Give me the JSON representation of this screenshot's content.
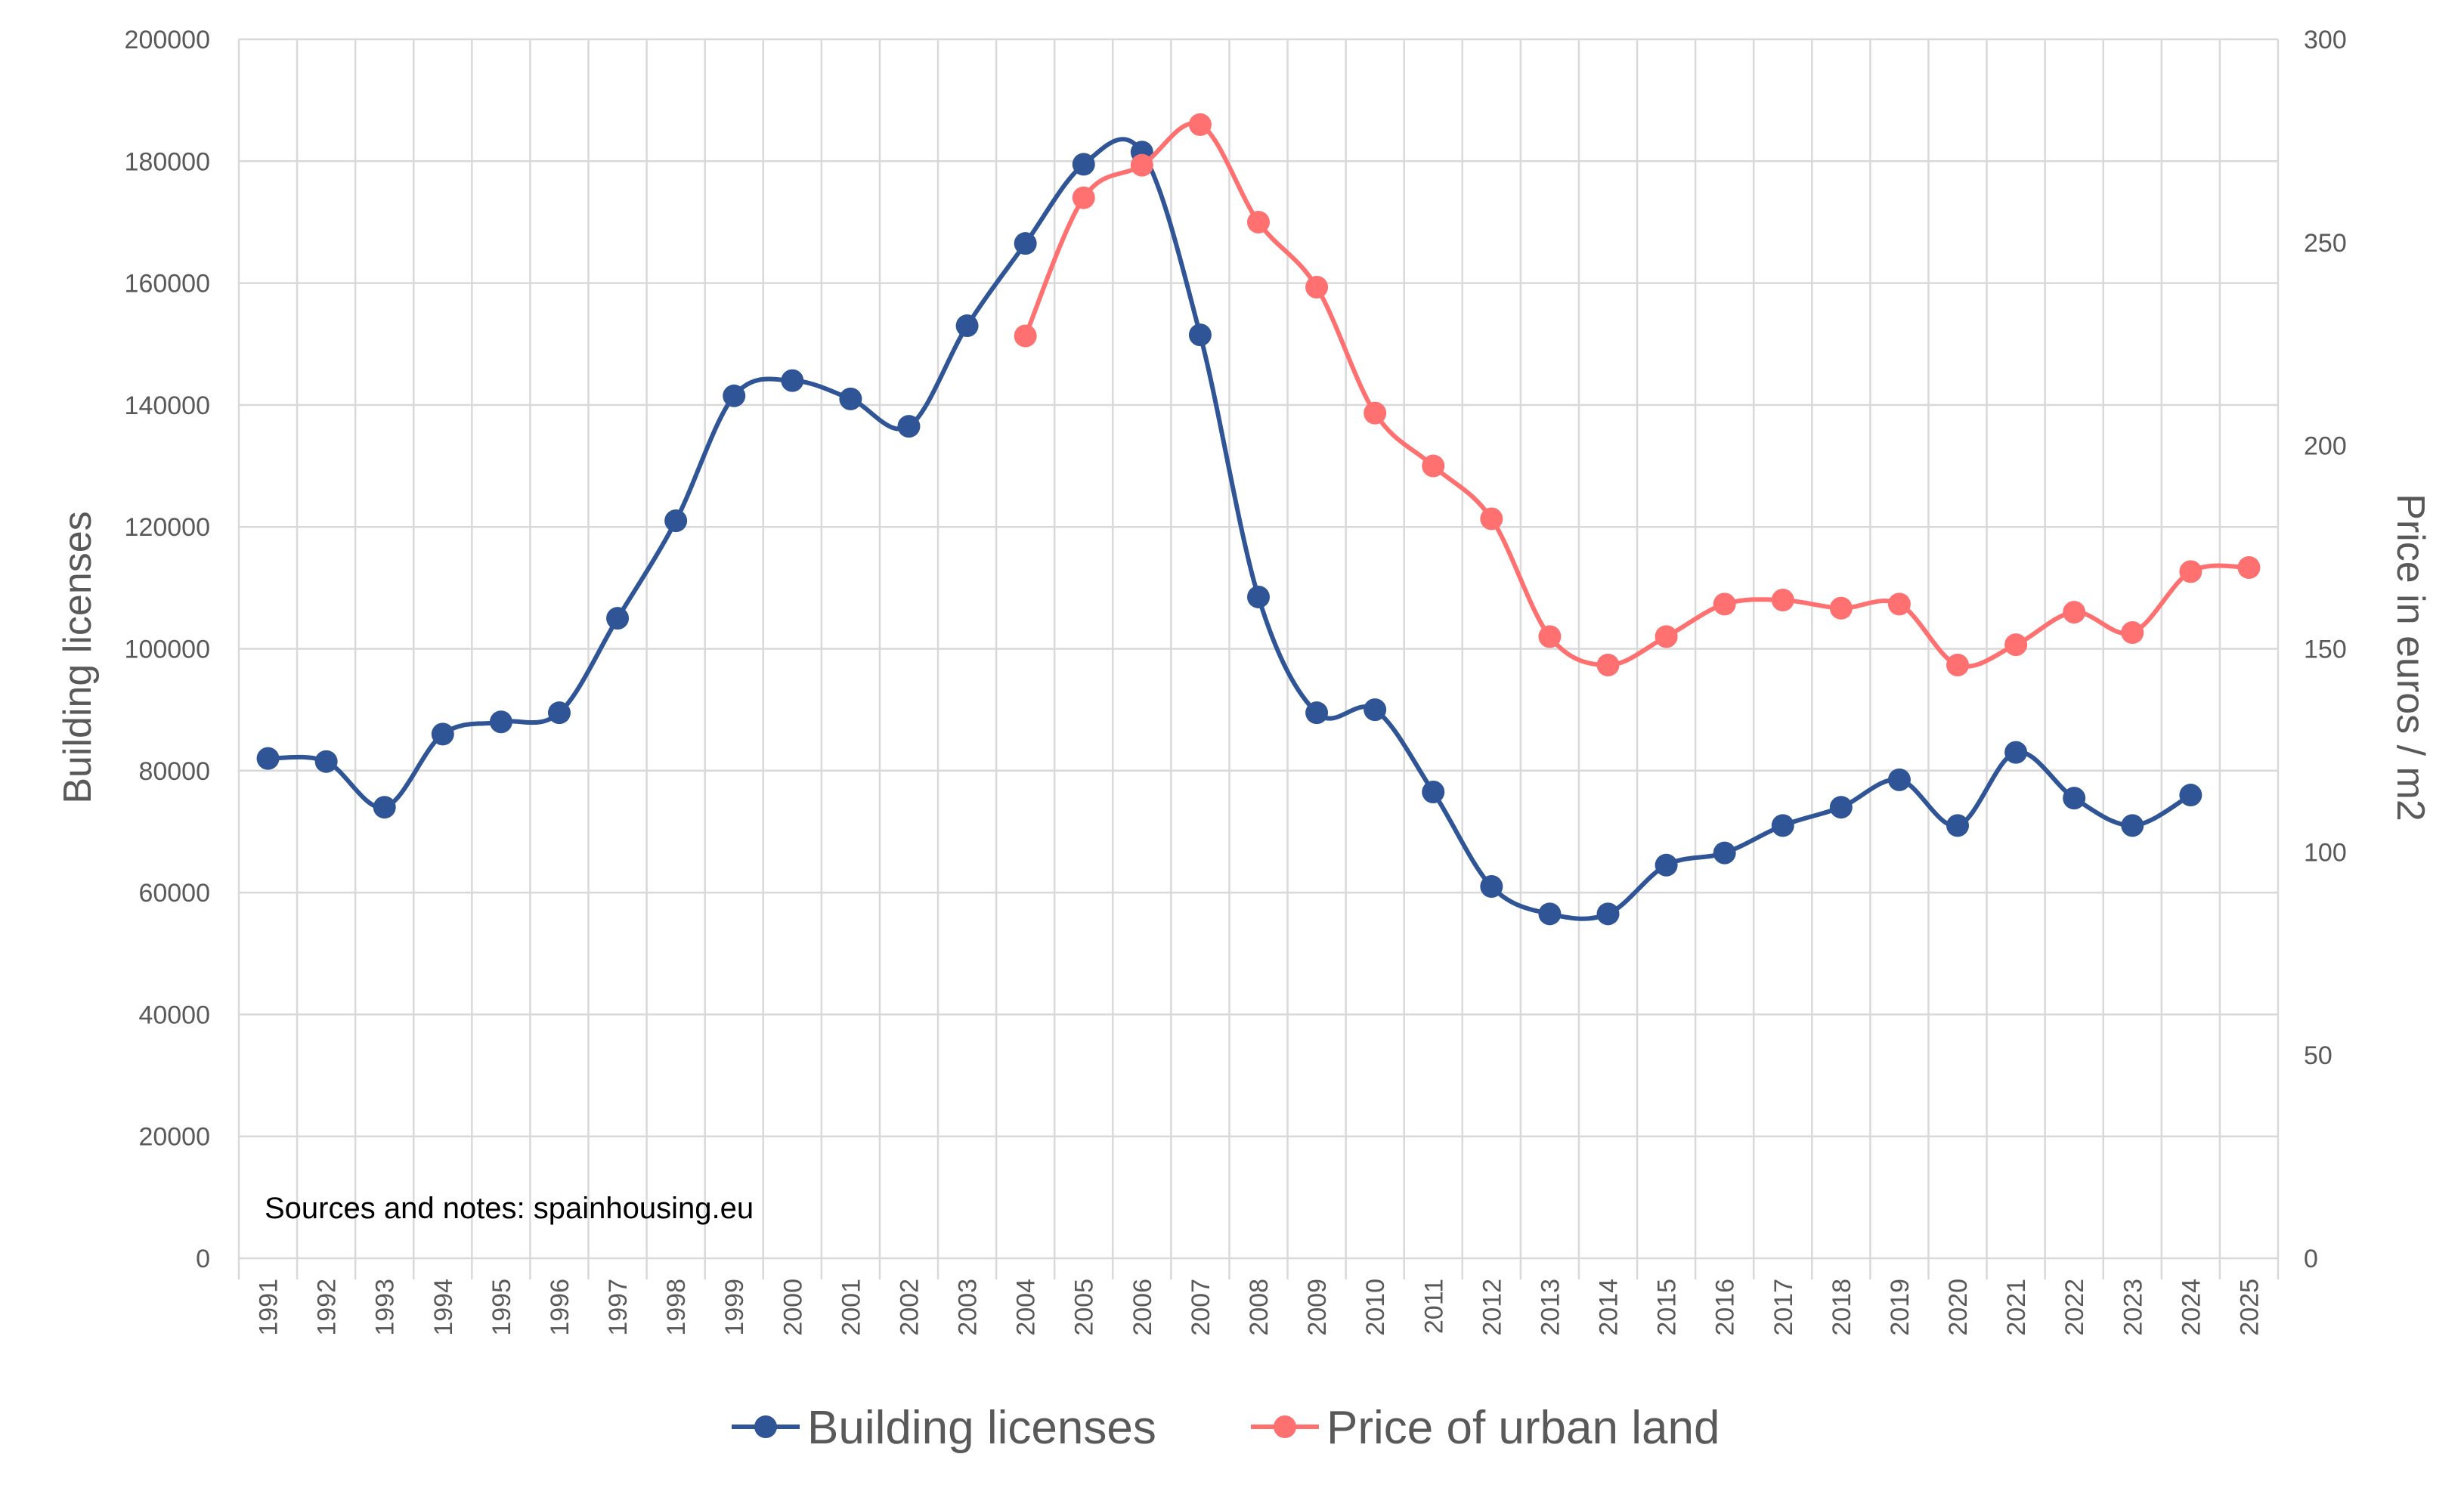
{
  "chart_data": {
    "type": "line",
    "categories": [
      "1991",
      "1992",
      "1993",
      "1994",
      "1995",
      "1996",
      "1997",
      "1998",
      "1999",
      "2000",
      "2001",
      "2002",
      "2003",
      "2004",
      "2005",
      "2006",
      "2007",
      "2008",
      "2009",
      "2010",
      "2011",
      "2012",
      "2013",
      "2014",
      "2015",
      "2016",
      "2017",
      "2018",
      "2019",
      "2020",
      "2021",
      "2022",
      "2023",
      "2024",
      "2025"
    ],
    "series": [
      {
        "name": "Building licenses",
        "axis": "left",
        "color": "#2f5597",
        "values": [
          82000,
          81500,
          74000,
          86000,
          88000,
          89500,
          105000,
          121000,
          141500,
          144000,
          141000,
          136500,
          153000,
          166500,
          179500,
          181500,
          151500,
          108500,
          89500,
          90000,
          76500,
          61000,
          56500,
          56500,
          64500,
          66500,
          71000,
          74000,
          78500,
          71000,
          83000,
          75500,
          71000,
          76000,
          null
        ]
      },
      {
        "name": "Price of urban land",
        "axis": "right",
        "color": "#ff7070",
        "values": [
          null,
          null,
          null,
          null,
          null,
          null,
          null,
          null,
          null,
          null,
          null,
          null,
          null,
          227,
          261,
          269,
          279,
          255,
          239,
          208,
          195,
          182,
          153,
          146,
          153,
          161,
          162,
          160,
          161,
          146,
          151,
          159,
          154,
          169,
          170
        ]
      }
    ],
    "ylabel": "Building licenses",
    "ylabel_right": "Price in euros / m2",
    "ylim": [
      0,
      200000
    ],
    "ylim_right": [
      0,
      300
    ],
    "yticks": [
      "0",
      "20000",
      "40000",
      "60000",
      "80000",
      "100000",
      "120000",
      "140000",
      "160000",
      "180000",
      "200000"
    ],
    "yticks_right": [
      "0",
      "50",
      "100",
      "150",
      "200",
      "250",
      "300"
    ],
    "annotation": "Sources and notes: spainhousing.eu",
    "grid": true,
    "legend_position": "bottom"
  }
}
